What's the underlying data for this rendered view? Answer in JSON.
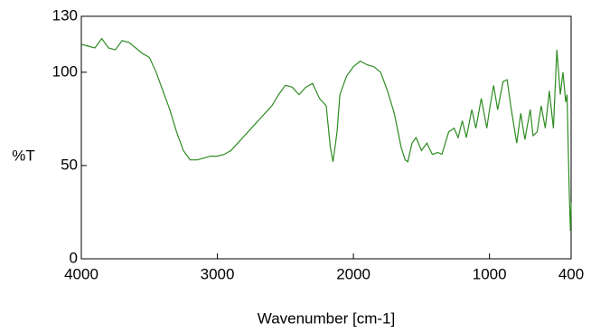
{
  "chart_data": {
    "type": "line",
    "xlabel": "Wavenumber [cm-1]",
    "ylabel": "%T",
    "x": [
      4000,
      3950,
      3900,
      3850,
      3800,
      3750,
      3700,
      3650,
      3600,
      3550,
      3500,
      3450,
      3400,
      3350,
      3300,
      3250,
      3200,
      3150,
      3100,
      3050,
      3000,
      2950,
      2900,
      2850,
      2800,
      2750,
      2700,
      2650,
      2600,
      2550,
      2500,
      2450,
      2400,
      2350,
      2300,
      2250,
      2200,
      2170,
      2150,
      2120,
      2100,
      2050,
      2000,
      1950,
      1900,
      1850,
      1800,
      1750,
      1700,
      1650,
      1620,
      1600,
      1570,
      1540,
      1500,
      1460,
      1420,
      1380,
      1350,
      1300,
      1260,
      1230,
      1200,
      1170,
      1130,
      1100,
      1060,
      1020,
      1000,
      970,
      940,
      900,
      870,
      840,
      800,
      770,
      740,
      700,
      680,
      650,
      620,
      590,
      560,
      530,
      505,
      480,
      460,
      440,
      430,
      415,
      405,
      400
    ],
    "series": [
      {
        "name": "%T",
        "color": "#2e8b22",
        "values": [
          115,
          114,
          113,
          118,
          113,
          112,
          117,
          116,
          113,
          110,
          108,
          100,
          90,
          80,
          68,
          58,
          53,
          53,
          54,
          55,
          55,
          56,
          58,
          62,
          66,
          70,
          74,
          78,
          82,
          88,
          93,
          92,
          88,
          92,
          94,
          86,
          82,
          60,
          52,
          68,
          88,
          98,
          103,
          106,
          104,
          103,
          100,
          90,
          78,
          60,
          53,
          52,
          62,
          65,
          58,
          62,
          56,
          57,
          56,
          68,
          70,
          65,
          74,
          65,
          80,
          70,
          86,
          70,
          80,
          93,
          80,
          95,
          96,
          80,
          62,
          78,
          64,
          80,
          66,
          68,
          82,
          70,
          90,
          70,
          112,
          88,
          100,
          84,
          88,
          40,
          15,
          30
        ]
      }
    ],
    "xlim": [
      4000,
      400
    ],
    "xticks": [
      4000,
      3000,
      2000,
      1000,
      400
    ],
    "ylim": [
      0,
      130
    ],
    "yticks": [
      0,
      50,
      100,
      130
    ]
  }
}
